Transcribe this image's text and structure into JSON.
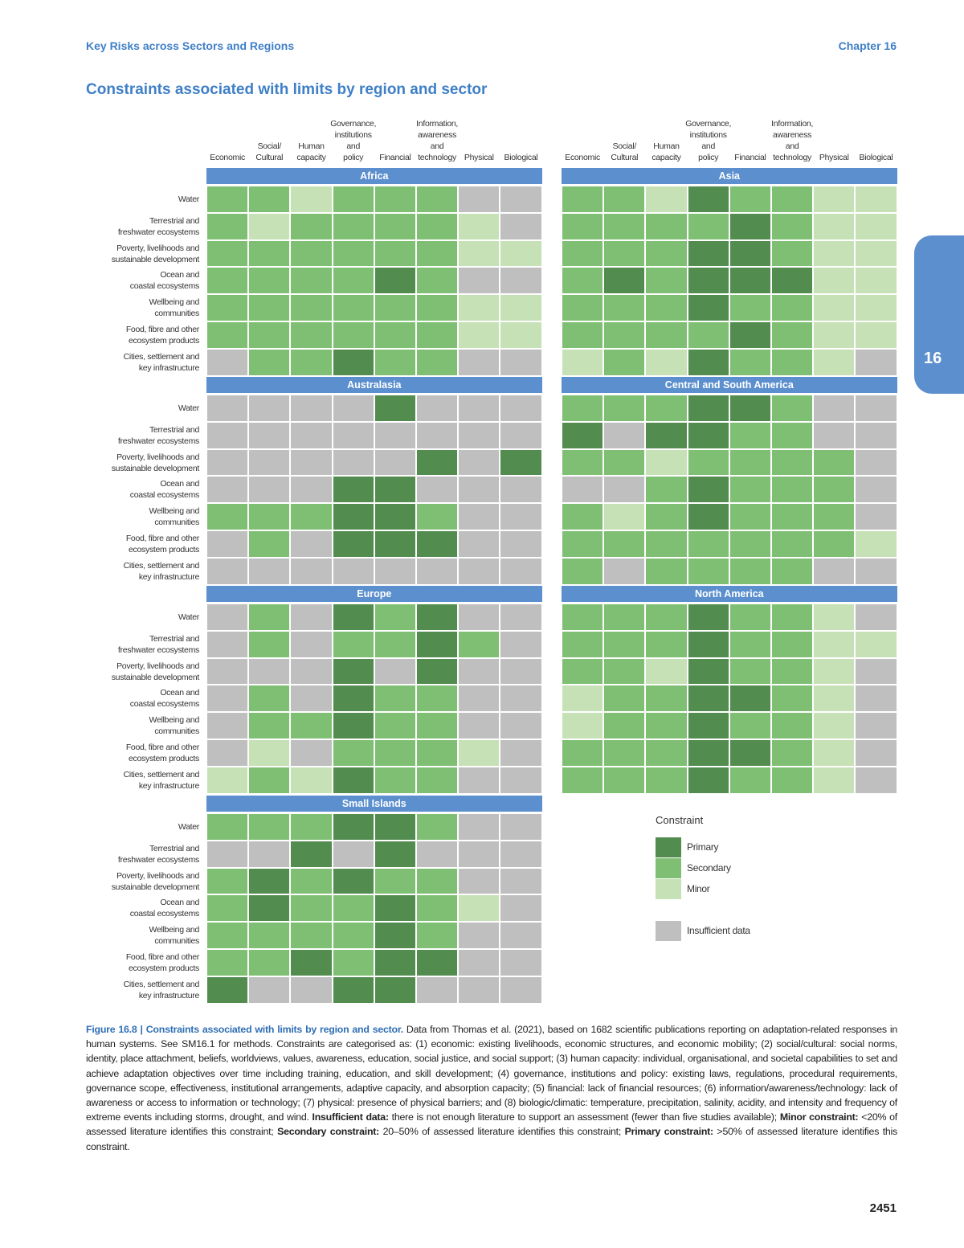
{
  "header": {
    "running_title": "Key Risks across Sectors and Regions",
    "chapter": "Chapter 16",
    "tab": "16"
  },
  "title": "Constraints associated with limits by region and sector",
  "columns": [
    "Economic",
    "Social/\nCultural",
    "Human\ncapacity",
    "Governance,\ninstitutions\nand\npolicy",
    "Financial",
    "Information,\nawareness\nand\ntechnology",
    "Physical",
    "Biological"
  ],
  "rows": [
    "Water",
    "Terrestrial and\nfreshwater ecosystems",
    "Poverty, livelihoods and\nsustainable development",
    "Ocean and\ncoastal ecosystems",
    "Wellbeing and\ncommunities",
    "Food, fibre and other\necosystem products",
    "Cities, settlement and\nkey infrastructure"
  ],
  "legend": {
    "title": "Constraint",
    "items": [
      {
        "label": "Primary",
        "color": "#528c4f"
      },
      {
        "label": "Secondary",
        "color": "#7fbf73"
      },
      {
        "label": "Minor",
        "color": "#c6e1b6"
      },
      {
        "label": "Insufficient data",
        "color": "#bfbfbf"
      }
    ]
  },
  "regions": [
    {
      "name": "Africa",
      "cells": [
        [
          "Secondary",
          "Secondary",
          "Minor",
          "Secondary",
          "Secondary",
          "Secondary",
          "Insufficient data",
          "Insufficient data"
        ],
        [
          "Secondary",
          "Minor",
          "Secondary",
          "Secondary",
          "Secondary",
          "Secondary",
          "Minor",
          "Insufficient data"
        ],
        [
          "Secondary",
          "Secondary",
          "Secondary",
          "Secondary",
          "Secondary",
          "Secondary",
          "Minor",
          "Minor"
        ],
        [
          "Secondary",
          "Secondary",
          "Secondary",
          "Secondary",
          "Primary",
          "Secondary",
          "Insufficient data",
          "Insufficient data"
        ],
        [
          "Secondary",
          "Secondary",
          "Secondary",
          "Secondary",
          "Secondary",
          "Secondary",
          "Minor",
          "Minor"
        ],
        [
          "Secondary",
          "Secondary",
          "Secondary",
          "Secondary",
          "Secondary",
          "Secondary",
          "Minor",
          "Minor"
        ],
        [
          "Insufficient data",
          "Secondary",
          "Secondary",
          "Primary",
          "Secondary",
          "Secondary",
          "Insufficient data",
          "Insufficient data"
        ]
      ]
    },
    {
      "name": "Asia",
      "cells": [
        [
          "Secondary",
          "Secondary",
          "Minor",
          "Primary",
          "Secondary",
          "Secondary",
          "Minor",
          "Minor"
        ],
        [
          "Secondary",
          "Secondary",
          "Secondary",
          "Secondary",
          "Primary",
          "Secondary",
          "Minor",
          "Minor"
        ],
        [
          "Secondary",
          "Secondary",
          "Secondary",
          "Primary",
          "Primary",
          "Secondary",
          "Minor",
          "Minor"
        ],
        [
          "Secondary",
          "Primary",
          "Secondary",
          "Primary",
          "Primary",
          "Primary",
          "Minor",
          "Minor"
        ],
        [
          "Secondary",
          "Secondary",
          "Secondary",
          "Primary",
          "Secondary",
          "Secondary",
          "Minor",
          "Minor"
        ],
        [
          "Secondary",
          "Secondary",
          "Secondary",
          "Secondary",
          "Primary",
          "Secondary",
          "Minor",
          "Minor"
        ],
        [
          "Minor",
          "Secondary",
          "Minor",
          "Primary",
          "Secondary",
          "Secondary",
          "Minor",
          "Insufficient data"
        ]
      ]
    },
    {
      "name": "Australasia",
      "cells": [
        [
          "Insufficient data",
          "Insufficient data",
          "Insufficient data",
          "Insufficient data",
          "Primary",
          "Insufficient data",
          "Insufficient data",
          "Insufficient data"
        ],
        [
          "Insufficient data",
          "Insufficient data",
          "Insufficient data",
          "Insufficient data",
          "Insufficient data",
          "Insufficient data",
          "Insufficient data",
          "Insufficient data"
        ],
        [
          "Insufficient data",
          "Insufficient data",
          "Insufficient data",
          "Insufficient data",
          "Insufficient data",
          "Primary",
          "Insufficient data",
          "Primary"
        ],
        [
          "Insufficient data",
          "Insufficient data",
          "Insufficient data",
          "Primary",
          "Primary",
          "Insufficient data",
          "Insufficient data",
          "Insufficient data"
        ],
        [
          "Secondary",
          "Secondary",
          "Secondary",
          "Primary",
          "Primary",
          "Secondary",
          "Insufficient data",
          "Insufficient data"
        ],
        [
          "Insufficient data",
          "Secondary",
          "Insufficient data",
          "Primary",
          "Primary",
          "Primary",
          "Insufficient data",
          "Insufficient data"
        ],
        [
          "Insufficient data",
          "Insufficient data",
          "Insufficient data",
          "Insufficient data",
          "Insufficient data",
          "Insufficient data",
          "Insufficient data",
          "Insufficient data"
        ]
      ]
    },
    {
      "name": "Central and South America",
      "cells": [
        [
          "Secondary",
          "Secondary",
          "Secondary",
          "Primary",
          "Primary",
          "Secondary",
          "Insufficient data",
          "Insufficient data"
        ],
        [
          "Primary",
          "Insufficient data",
          "Primary",
          "Primary",
          "Secondary",
          "Secondary",
          "Insufficient data",
          "Insufficient data"
        ],
        [
          "Secondary",
          "Secondary",
          "Minor",
          "Secondary",
          "Secondary",
          "Secondary",
          "Secondary",
          "Insufficient data"
        ],
        [
          "Insufficient data",
          "Insufficient data",
          "Secondary",
          "Primary",
          "Secondary",
          "Secondary",
          "Secondary",
          "Insufficient data"
        ],
        [
          "Secondary",
          "Minor",
          "Secondary",
          "Primary",
          "Secondary",
          "Secondary",
          "Secondary",
          "Insufficient data"
        ],
        [
          "Secondary",
          "Secondary",
          "Secondary",
          "Secondary",
          "Secondary",
          "Secondary",
          "Secondary",
          "Minor"
        ],
        [
          "Secondary",
          "Insufficient data",
          "Secondary",
          "Secondary",
          "Secondary",
          "Secondary",
          "Insufficient data",
          "Insufficient data"
        ]
      ]
    },
    {
      "name": "Europe",
      "cells": [
        [
          "Insufficient data",
          "Secondary",
          "Insufficient data",
          "Primary",
          "Secondary",
          "Primary",
          "Insufficient data",
          "Insufficient data"
        ],
        [
          "Insufficient data",
          "Secondary",
          "Insufficient data",
          "Secondary",
          "Secondary",
          "Primary",
          "Secondary",
          "Insufficient data"
        ],
        [
          "Insufficient data",
          "Insufficient data",
          "Insufficient data",
          "Primary",
          "Insufficient data",
          "Primary",
          "Insufficient data",
          "Insufficient data"
        ],
        [
          "Insufficient data",
          "Secondary",
          "Insufficient data",
          "Primary",
          "Secondary",
          "Secondary",
          "Insufficient data",
          "Insufficient data"
        ],
        [
          "Insufficient data",
          "Secondary",
          "Secondary",
          "Primary",
          "Secondary",
          "Secondary",
          "Insufficient data",
          "Insufficient data"
        ],
        [
          "Insufficient data",
          "Minor",
          "Insufficient data",
          "Secondary",
          "Secondary",
          "Secondary",
          "Minor",
          "Insufficient data"
        ],
        [
          "Minor",
          "Secondary",
          "Minor",
          "Primary",
          "Secondary",
          "Secondary",
          "Insufficient data",
          "Insufficient data"
        ]
      ]
    },
    {
      "name": "North America",
      "cells": [
        [
          "Secondary",
          "Secondary",
          "Secondary",
          "Primary",
          "Secondary",
          "Secondary",
          "Minor",
          "Insufficient data"
        ],
        [
          "Secondary",
          "Secondary",
          "Secondary",
          "Primary",
          "Secondary",
          "Secondary",
          "Minor",
          "Minor"
        ],
        [
          "Secondary",
          "Secondary",
          "Minor",
          "Primary",
          "Secondary",
          "Secondary",
          "Minor",
          "Insufficient data"
        ],
        [
          "Minor",
          "Secondary",
          "Secondary",
          "Primary",
          "Primary",
          "Secondary",
          "Minor",
          "Insufficient data"
        ],
        [
          "Minor",
          "Secondary",
          "Secondary",
          "Primary",
          "Secondary",
          "Secondary",
          "Minor",
          "Insufficient data"
        ],
        [
          "Secondary",
          "Secondary",
          "Secondary",
          "Primary",
          "Primary",
          "Secondary",
          "Minor",
          "Insufficient data"
        ],
        [
          "Secondary",
          "Secondary",
          "Secondary",
          "Primary",
          "Secondary",
          "Secondary",
          "Minor",
          "Insufficient data"
        ]
      ]
    },
    {
      "name": "Small Islands",
      "cells": [
        [
          "Secondary",
          "Secondary",
          "Secondary",
          "Primary",
          "Primary",
          "Secondary",
          "Insufficient data",
          "Insufficient data"
        ],
        [
          "Insufficient data",
          "Insufficient data",
          "Primary",
          "Insufficient data",
          "Primary",
          "Insufficient data",
          "Insufficient data",
          "Insufficient data"
        ],
        [
          "Secondary",
          "Primary",
          "Secondary",
          "Primary",
          "Secondary",
          "Secondary",
          "Insufficient data",
          "Insufficient data"
        ],
        [
          "Secondary",
          "Primary",
          "Secondary",
          "Secondary",
          "Primary",
          "Secondary",
          "Minor",
          "Insufficient data"
        ],
        [
          "Secondary",
          "Secondary",
          "Secondary",
          "Secondary",
          "Primary",
          "Secondary",
          "Insufficient data",
          "Insufficient data"
        ],
        [
          "Secondary",
          "Secondary",
          "Primary",
          "Secondary",
          "Primary",
          "Primary",
          "Insufficient data",
          "Insufficient data"
        ],
        [
          "Primary",
          "Insufficient data",
          "Insufficient data",
          "Primary",
          "Primary",
          "Insufficient data",
          "Insufficient data",
          "Insufficient data"
        ]
      ]
    }
  ],
  "caption": [
    {
      "text": "Figure 16.8 | Constraints associated with limits by region and sector.",
      "bold": true
    },
    {
      "text": " Data from Thomas et al. (2021), based on 1682 scientific publications reporting on adaptation-related responses in human systems. See SM16.1 for methods. Constraints are categorised as: (1) economic: existing livelihoods, economic structures, and economic mobility; (2) social/cultural: social norms, identity, place attachment, beliefs, worldviews, values, awareness, education, social justice, and social support; (3) human capacity: individual, organisational, and societal capabilities to set and achieve adaptation objectives over time including training, education, and skill development; (4) governance, institutions and policy: existing laws, regulations, procedural requirements, governance scope, effectiveness, institutional arrangements, adaptive capacity, and absorption capacity; (5) financial: lack of financial resources; (6) information/awareness/technology: lack of awareness or access to information or technology; (7) physical: presence of physical barriers; and (8) biologic/climatic: temperature, precipitation, salinity, acidity, and intensity and frequency of extreme events including storms, drought, and wind. ",
      "bold": false
    },
    {
      "text": "Insufficient data:",
      "bold": true
    },
    {
      "text": " there is not enough literature to support an assessment (fewer than five studies available); ",
      "bold": false
    },
    {
      "text": "Minor constraint:",
      "bold": true
    },
    {
      "text": " <20% of assessed literature identifies this constraint; ",
      "bold": false
    },
    {
      "text": "Secondary constraint:",
      "bold": true
    },
    {
      "text": " 20–50% of assessed literature identifies this constraint; ",
      "bold": false
    },
    {
      "text": "Primary constraint:",
      "bold": true
    },
    {
      "text": " >50% of assessed literature identifies this constraint.",
      "bold": false
    }
  ],
  "page_number": "2451"
}
